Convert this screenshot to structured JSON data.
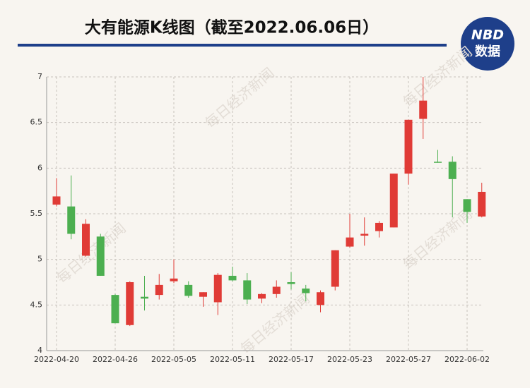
{
  "chart_data": {
    "type": "candlestick",
    "title": "大有能源K线图（截至2022.06.06日）",
    "logo": {
      "top": "NBD",
      "bottom": "数据"
    },
    "watermark": "每日经济新闻",
    "categories": [
      "2022-04-20",
      null,
      null,
      null,
      "2022-04-26",
      null,
      null,
      null,
      "2022-05-05",
      null,
      null,
      null,
      "2022-05-11",
      null,
      null,
      null,
      "2022-05-17",
      null,
      null,
      null,
      "2022-05-23",
      null,
      null,
      null,
      "2022-05-27",
      null,
      null,
      null,
      "2022-06-02",
      null
    ],
    "open": [
      5.6,
      5.58,
      5.04,
      5.25,
      4.61,
      4.28,
      4.59,
      4.61,
      4.76,
      4.72,
      4.59,
      4.53,
      4.82,
      4.77,
      4.57,
      4.62,
      4.75,
      4.68,
      4.5,
      4.7,
      5.14,
      5.26,
      5.31,
      5.35,
      5.94,
      6.54,
      6.07,
      6.07,
      5.66,
      5.47
    ],
    "high": [
      5.89,
      5.92,
      5.44,
      5.28,
      4.62,
      4.76,
      4.82,
      4.84,
      5.0,
      4.76,
      4.64,
      4.85,
      4.92,
      4.85,
      4.63,
      4.77,
      4.86,
      4.72,
      4.66,
      5.1,
      5.5,
      5.46,
      5.42,
      5.94,
      6.53,
      7.0,
      6.2,
      6.13,
      5.66,
      5.84
    ],
    "low": [
      5.58,
      5.22,
      5.03,
      4.82,
      4.3,
      4.27,
      4.44,
      4.56,
      4.74,
      4.58,
      4.48,
      4.39,
      4.76,
      4.51,
      4.52,
      4.58,
      4.67,
      4.54,
      4.42,
      4.66,
      5.13,
      5.15,
      5.24,
      5.35,
      5.82,
      6.32,
      6.06,
      5.46,
      5.4,
      5.46
    ],
    "close": [
      5.69,
      5.28,
      5.39,
      4.82,
      4.3,
      4.75,
      4.57,
      4.72,
      4.79,
      4.6,
      4.64,
      4.83,
      4.77,
      4.56,
      4.62,
      4.7,
      4.73,
      4.63,
      4.64,
      5.1,
      5.24,
      5.28,
      5.4,
      5.94,
      6.53,
      6.74,
      6.06,
      5.88,
      5.52,
      5.74
    ],
    "up_color": "#e03b36",
    "down_color": "#4caf50",
    "ylim": [
      4,
      7
    ],
    "yticks": [
      4,
      4.5,
      5,
      5.5,
      6,
      6.5,
      7
    ],
    "grid": true
  }
}
